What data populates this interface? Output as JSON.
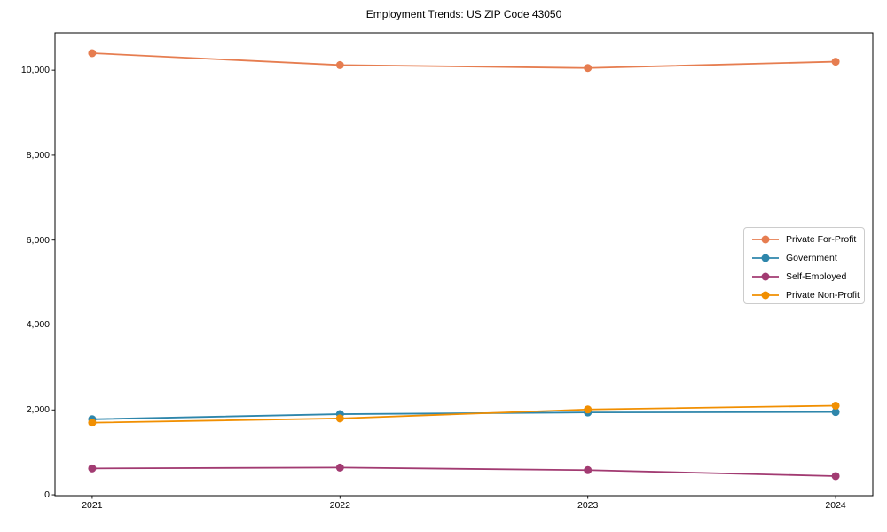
{
  "chart_data": {
    "type": "line",
    "title": "Employment Trends: US ZIP Code 43050",
    "categories": [
      2021,
      2022,
      2023,
      2024
    ],
    "xtick_labels": [
      "2021",
      "2022",
      "2023",
      "2024"
    ],
    "yticks": [
      0,
      2000,
      4000,
      6000,
      8000,
      10000
    ],
    "ytick_labels": [
      "0",
      "2,000",
      "4,000",
      "6,000",
      "8,000",
      "10,000"
    ],
    "xlim": [
      2020.85,
      2024.15
    ],
    "ylim": [
      -20,
      10880
    ],
    "grid": false,
    "legend_position": "center right",
    "line_width": 1.8,
    "marker": "circle",
    "marker_radius": 4.5,
    "axis_color": "#000000",
    "legend_border_color": "#cccccc",
    "series": [
      {
        "name": "Private For-Profit",
        "color": "#E67D50",
        "values": [
          10400,
          10120,
          10050,
          10200
        ]
      },
      {
        "name": "Government",
        "color": "#2E86AB",
        "values": [
          1780,
          1900,
          1940,
          1950
        ]
      },
      {
        "name": "Self-Employed",
        "color": "#A23B72",
        "values": [
          620,
          640,
          580,
          440
        ]
      },
      {
        "name": "Private Non-Profit",
        "color": "#F18F01",
        "values": [
          1700,
          1800,
          2010,
          2100
        ]
      }
    ]
  }
}
